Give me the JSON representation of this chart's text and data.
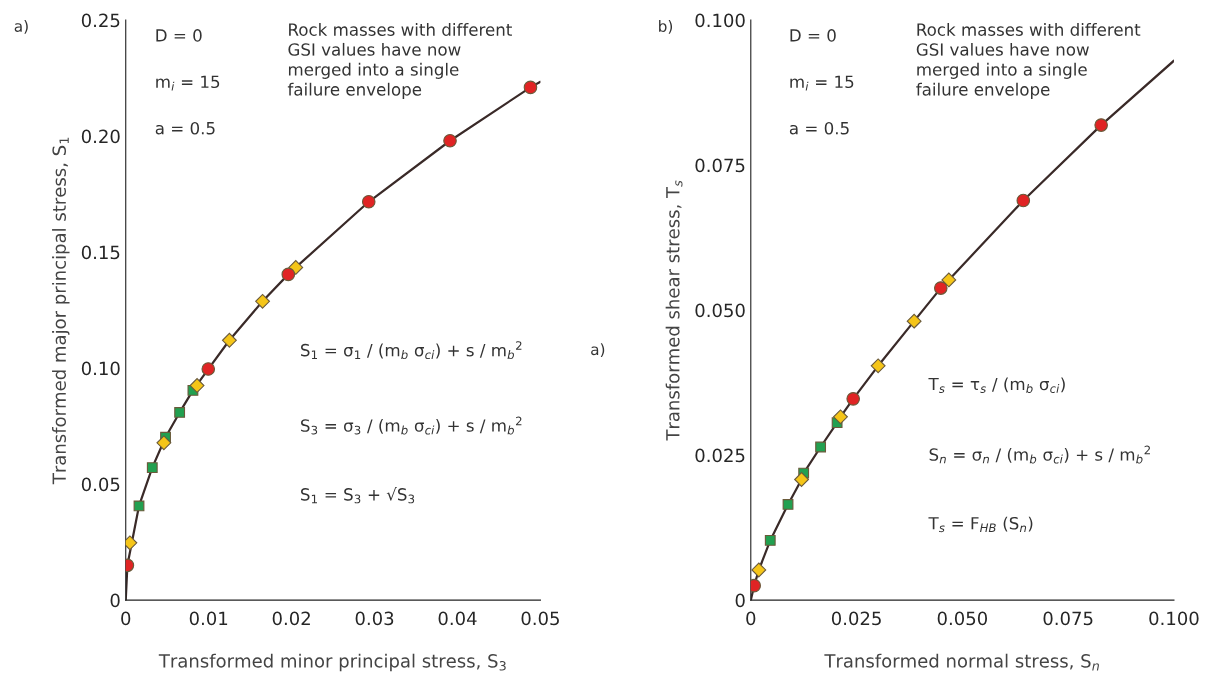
{
  "chart_data": [
    {
      "type": "scatter",
      "xlabel": "Transformed minor principal stress, S$_{3}$",
      "ylabel": "Transformed major principal stress, S$_{1}$",
      "annotations": [
        "a)",
        "D = 0",
        "m$_{i}$ = 15",
        "a = 0.5",
        "Rock masses with different\nGSI values have now\nmerged into a single\nfailure envelope",
        "S$_{1}$ = σ$_{1}$ / (m$_{b}$ σ$_{ci}$) + s / m$_{b}$$^{2}$",
        "S$_{3}$ = σ$_{3}$ / (m$_{b}$ σ$_{ci}$) + s / m$_{b}$$^{2}$",
        "S$_{1}$ = S$_{3}$ + √S$_{3}$",
        "a)"
      ],
      "series": [
        {
          "type": "line",
          "color": "#3a2a28",
          "marker": "none",
          "x": [
            0,
            0.0002,
            0.0016,
            0.0032,
            0.0048,
            0.0065,
            0.0081,
            0.00995,
            0.0125,
            0.0165,
            0.0196,
            0.0205,
            0.0293,
            0.0391,
            0.0488,
            0.05
          ],
          "values": [
            0,
            0.015,
            0.0406,
            0.0571,
            0.0702,
            0.0809,
            0.0904,
            0.0996,
            0.112,
            0.1288,
            0.1404,
            0.1434,
            0.1717,
            0.198,
            0.221,
            0.2234
          ]
        },
        {
          "color": "#22a050",
          "marker": "square",
          "x": [
            0.0016,
            0.0032,
            0.0048,
            0.0065,
            0.0081
          ],
          "values": [
            0.0406,
            0.0571,
            0.0702,
            0.0809,
            0.0904
          ]
        },
        {
          "color": "#f5c518",
          "marker": "diamond",
          "x": [
            0.0005,
            0.0046,
            0.0086,
            0.0125,
            0.0165,
            0.0205
          ],
          "values": [
            0.0247,
            0.0678,
            0.0925,
            0.112,
            0.1288,
            0.1434
          ]
        },
        {
          "color": "#e02424",
          "marker": "circle",
          "x": [
            0.0002,
            0.00995,
            0.0196,
            0.0293,
            0.0391,
            0.0488
          ],
          "values": [
            0.015,
            0.0996,
            0.1404,
            0.1717,
            0.198,
            0.221
          ]
        }
      ],
      "xlim": [
        0,
        0.05
      ],
      "ylim": [
        0,
        0.25
      ],
      "xticks": [
        0,
        0.01,
        0.02,
        0.03,
        0.04,
        0.05
      ],
      "yticks": [
        0,
        0.05,
        {
          "value": 0.1,
          "label": "0.10"
        },
        0.15,
        {
          "value": 0.2,
          "label": "0.20"
        },
        0.25
      ]
    },
    {
      "type": "scatter",
      "xlabel": "Transformed normal stress, S$_{n}$",
      "ylabel": "Transformed shear stress, T$_{s}$",
      "annotations": [
        "b)",
        "D = 0",
        "m$_{i}$ = 15",
        "a = 0.5",
        "Rock masses with different\nGSI values have now\nmerged into a single\nfailure envelope",
        "T$_{s}$ = τ$_{s}$ / (m$_{b}$ σ$_{ci}$)",
        "S$_{n}$ = σ$_{n}$ / (m$_{b}$ σ$_{ci}$) + s / m$_{b}$$^{2}$",
        "T$_{s}$ = F$_{HB}$ (S$_{n}$)"
      ],
      "series": [
        {
          "type": "line",
          "color": "#3a2a28",
          "marker": "none",
          "x": [
            0,
            0.0008,
            0.0019,
            0.0046,
            0.0088,
            0.012,
            0.0125,
            0.0165,
            0.0204,
            0.0212,
            0.0242,
            0.0301,
            0.0386,
            0.0449,
            0.0468,
            0.0644,
            0.0828,
            0.1
          ],
          "values": [
            0,
            0.0025,
            0.0052,
            0.0103,
            0.0165,
            0.0208,
            0.0219,
            0.0264,
            0.0306,
            0.0316,
            0.0347,
            0.0404,
            0.0481,
            0.0538,
            0.0552,
            0.0689,
            0.0819,
            0.093
          ]
        },
        {
          "color": "#22a050",
          "marker": "square",
          "x": [
            0.0046,
            0.0088,
            0.0125,
            0.0165,
            0.0204
          ],
          "values": [
            0.0103,
            0.0165,
            0.0219,
            0.0264,
            0.0306
          ]
        },
        {
          "color": "#f5c518",
          "marker": "diamond",
          "x": [
            0.0019,
            0.012,
            0.0212,
            0.0301,
            0.0386,
            0.0468
          ],
          "values": [
            0.0052,
            0.0208,
            0.0316,
            0.0404,
            0.0481,
            0.0552
          ]
        },
        {
          "color": "#e02424",
          "marker": "circle",
          "x": [
            0.0008,
            0.0242,
            0.0449,
            0.0644,
            0.0828
          ],
          "values": [
            0.0025,
            0.0347,
            0.0538,
            0.0689,
            0.0819
          ]
        }
      ],
      "xlim": [
        0,
        0.1
      ],
      "ylim": [
        0,
        0.1
      ],
      "xticks": [
        0,
        {
          "value": 0.025,
          "label": "0.025"
        },
        {
          "value": 0.05,
          "label": "0.050"
        },
        {
          "value": 0.075,
          "label": "0.075"
        },
        {
          "value": 0.1,
          "label": "0.100"
        }
      ],
      "yticks": [
        0,
        {
          "value": 0.025,
          "label": "0.025"
        },
        {
          "value": 0.05,
          "label": "0.050"
        },
        {
          "value": 0.075,
          "label": "0.075"
        },
        {
          "value": 0.1,
          "label": "0.100"
        }
      ]
    }
  ]
}
